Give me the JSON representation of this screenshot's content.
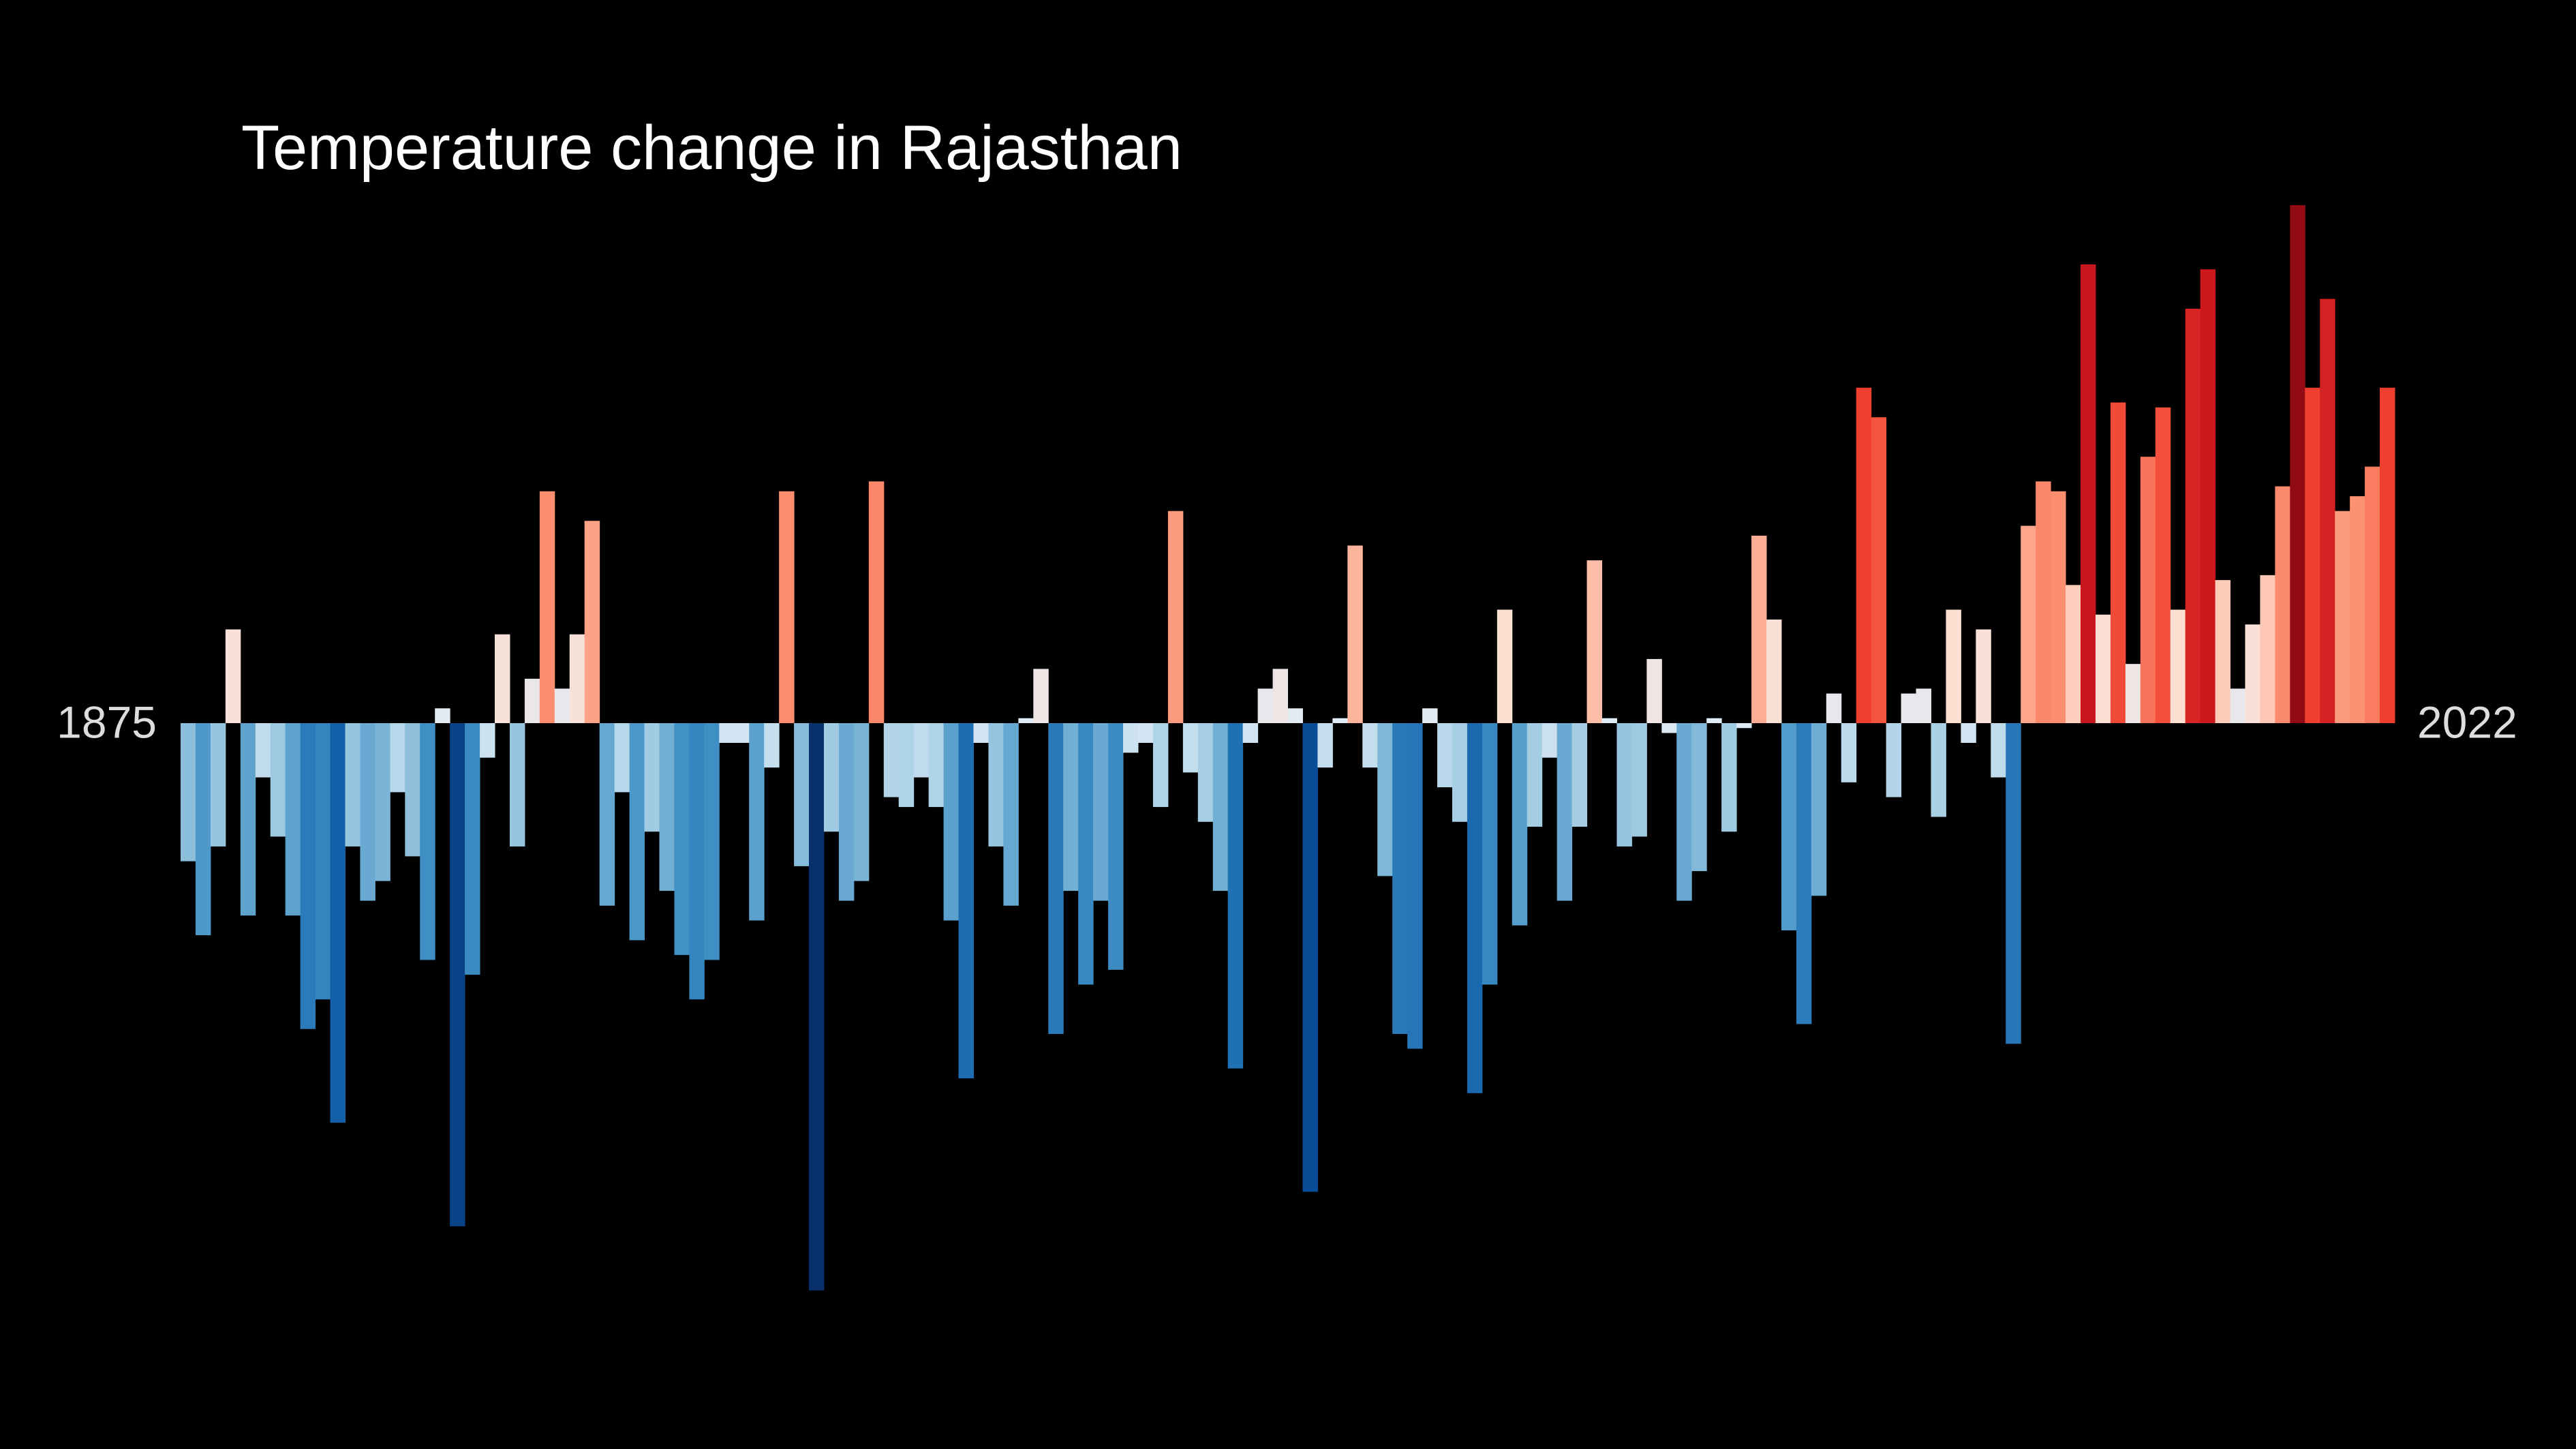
{
  "chart_data": {
    "type": "bar",
    "title": "Temperature change in Rajasthan",
    "categories": [
      "1875",
      null,
      null,
      null,
      null,
      null,
      null,
      null,
      null,
      null,
      null,
      null,
      null,
      null,
      null,
      null,
      null,
      null,
      null,
      null,
      null,
      null,
      null,
      null,
      null,
      null,
      null,
      null,
      null,
      null,
      null,
      null,
      null,
      null,
      null,
      null,
      null,
      null,
      null,
      null,
      null,
      null,
      null,
      null,
      null,
      null,
      null,
      null,
      null,
      null,
      null,
      null,
      null,
      null,
      null,
      null,
      null,
      null,
      null,
      null,
      null,
      null,
      null,
      null,
      null,
      null,
      null,
      null,
      null,
      null,
      null,
      null,
      null,
      null,
      null,
      null,
      null,
      null,
      null,
      null,
      null,
      null,
      null,
      null,
      null,
      null,
      null,
      null,
      null,
      null,
      null,
      null,
      null,
      null,
      null,
      null,
      null,
      null,
      null,
      null,
      null,
      null,
      null,
      null,
      null,
      null,
      null,
      null,
      null,
      null,
      null,
      null,
      null,
      null,
      null,
      null,
      null,
      null,
      null,
      null,
      null,
      null,
      null,
      null,
      null,
      null,
      null,
      null,
      null,
      null,
      null,
      null,
      null,
      null,
      null,
      null,
      null,
      null,
      null,
      null,
      null,
      null,
      null,
      null,
      null,
      null,
      null,
      "2022"
    ],
    "values": [
      -0.28,
      -0.43,
      -0.25,
      0.19,
      -0.39,
      -0.11,
      -0.23,
      -0.39,
      -0.62,
      -0.56,
      -0.81,
      -0.25,
      -0.36,
      -0.32,
      -0.14,
      -0.27,
      -0.48,
      0.03,
      -1.02,
      -0.51,
      -0.07,
      0.18,
      -0.25,
      0.09,
      0.47,
      0.07,
      0.18,
      0.41,
      -0.37,
      -0.14,
      -0.44,
      -0.22,
      -0.34,
      -0.47,
      -0.56,
      -0.48,
      -0.04,
      -0.04,
      -0.4,
      -0.09,
      0.47,
      -0.29,
      -1.15,
      -0.22,
      -0.36,
      -0.32,
      0.49,
      -0.15,
      -0.17,
      -0.11,
      -0.17,
      -0.4,
      -0.72,
      -0.04,
      -0.25,
      -0.37,
      0.01,
      0.11,
      -0.63,
      -0.34,
      -0.53,
      -0.36,
      -0.5,
      -0.06,
      -0.04,
      -0.17,
      0.43,
      -0.1,
      -0.2,
      -0.34,
      -0.7,
      -0.04,
      0.07,
      0.11,
      0.03,
      -0.95,
      -0.09,
      0.01,
      0.36,
      -0.09,
      -0.31,
      -0.63,
      -0.66,
      0.03,
      -0.13,
      -0.2,
      -0.75,
      -0.53,
      0.23,
      -0.41,
      -0.21,
      -0.07,
      -0.36,
      -0.21,
      0.33,
      0.01,
      -0.25,
      -0.23,
      0.13,
      -0.02,
      -0.36,
      -0.3,
      0.01,
      -0.22,
      -0.01,
      0.38,
      0.21,
      -0.42,
      -0.61,
      -0.35,
      0.06,
      -0.12,
      0.68,
      0.62,
      -0.15,
      0.06,
      0.07,
      -0.19,
      0.23,
      -0.04,
      0.19,
      -0.11,
      -0.65,
      0.4,
      0.49,
      0.47,
      0.28,
      0.93,
      0.22,
      0.65,
      0.12,
      0.54,
      0.64,
      0.23,
      0.84,
      0.92,
      0.29,
      0.07,
      0.2,
      0.3,
      0.48,
      1.05,
      0.68,
      0.86,
      0.43,
      0.46,
      0.52,
      0.68
    ]
  }
}
